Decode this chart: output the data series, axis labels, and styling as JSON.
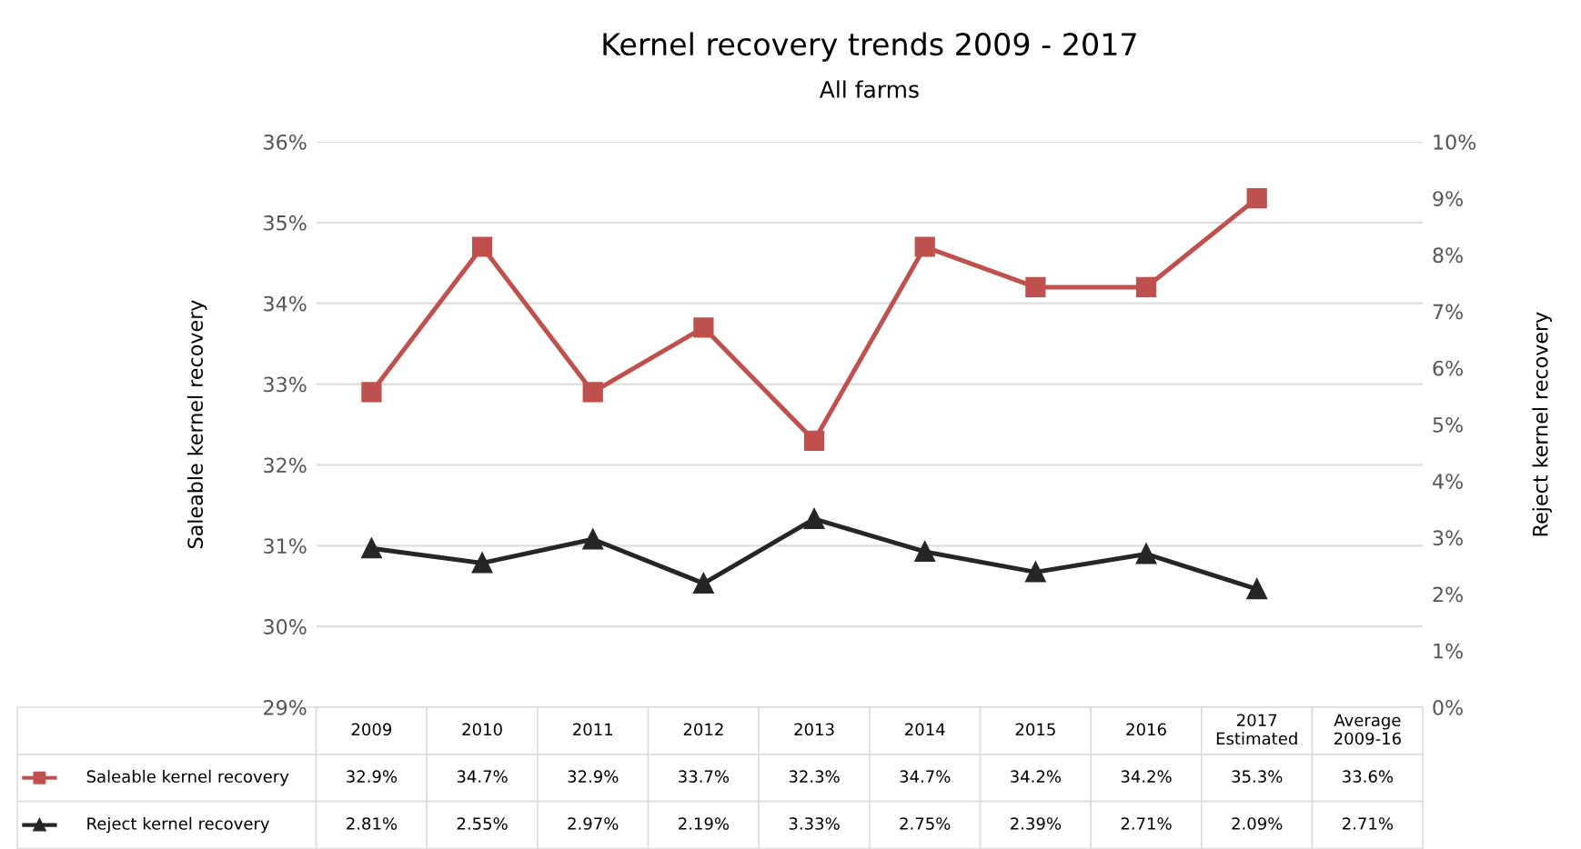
{
  "chart_data": {
    "type": "line",
    "title": "Kernel recovery trends 2009 - 2017",
    "subtitle": "All farms",
    "ylabel": "Saleable kernel recovery",
    "y2label": "Reject kernel recovery",
    "categories": [
      "2009",
      "2010",
      "2011",
      "2012",
      "2013",
      "2014",
      "2015",
      "2016",
      "2017 Estimated",
      "Average 2009-16"
    ],
    "series": [
      {
        "name": "Saleable kernel recovery",
        "color": "#c0504d",
        "marker": "square",
        "values": [
          32.9,
          34.7,
          32.9,
          33.7,
          32.3,
          34.7,
          34.2,
          34.2,
          35.3,
          null
        ],
        "value_labels": [
          "32.9%",
          "34.7%",
          "32.9%",
          "33.7%",
          "32.3%",
          "34.7%",
          "34.2%",
          "34.2%",
          "35.3%",
          "33.6%"
        ]
      },
      {
        "name": "Reject kernel recovery",
        "color": "#262626",
        "marker": "triangle",
        "axis": "y2",
        "values": [
          2.81,
          2.55,
          2.97,
          2.19,
          3.33,
          2.75,
          2.39,
          2.71,
          2.09,
          null
        ],
        "value_labels": [
          "2.81%",
          "2.55%",
          "2.97%",
          "2.19%",
          "3.33%",
          "2.75%",
          "2.39%",
          "2.71%",
          "2.09%",
          "2.71%"
        ]
      }
    ],
    "ylim": [
      29,
      36
    ],
    "yticks": [
      {
        "value": 29,
        "label": "29%"
      },
      {
        "value": 30,
        "label": "30%"
      },
      {
        "value": 31,
        "label": "31%"
      },
      {
        "value": 32,
        "label": "32%"
      },
      {
        "value": 33,
        "label": "33%"
      },
      {
        "value": 34,
        "label": "34%"
      },
      {
        "value": 35,
        "label": "35%"
      },
      {
        "value": 36,
        "label": "36%"
      }
    ],
    "y2lim": [
      0,
      10
    ],
    "y2ticks": [
      {
        "value": 0,
        "label": "0%"
      },
      {
        "value": 1,
        "label": "1%"
      },
      {
        "value": 2,
        "label": "2%"
      },
      {
        "value": 3,
        "label": "3%"
      },
      {
        "value": 4,
        "label": "4%"
      },
      {
        "value": 5,
        "label": "5%"
      },
      {
        "value": 6,
        "label": "6%"
      },
      {
        "value": 7,
        "label": "7%"
      },
      {
        "value": 8,
        "label": "8%"
      },
      {
        "value": 9,
        "label": "9%"
      },
      {
        "value": 10,
        "label": "10%"
      }
    ],
    "grid": "y",
    "legend": "bottom left",
    "line_style": "solid"
  }
}
